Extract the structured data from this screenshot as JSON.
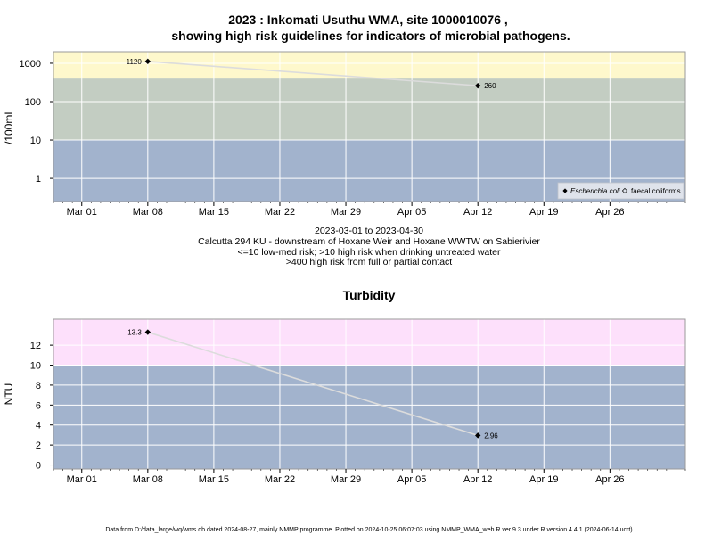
{
  "chart_data": [
    {
      "type": "line",
      "title_line1": "2023 : Inkomati Usuthu WMA, site 1000010076 ,",
      "title_line2": "showing high risk guidelines for indicators of microbial pathogens.",
      "ylabel": "/100mL",
      "y_scale": "log",
      "ylim": [
        0.25,
        2000
      ],
      "y_ticks": [
        1,
        10,
        100,
        1000
      ],
      "y_tick_labels": [
        "1",
        "10",
        "100",
        "1000"
      ],
      "x_range": [
        "2023-02-26",
        "2023-05-04"
      ],
      "x_ticks": [
        "2023-03-01",
        "2023-03-08",
        "2023-03-15",
        "2023-03-22",
        "2023-03-29",
        "2023-04-05",
        "2023-04-12",
        "2023-04-19",
        "2023-04-26"
      ],
      "x_tick_labels": [
        "Mar 01",
        "Mar 08",
        "Mar 15",
        "Mar 22",
        "Mar 29",
        "Apr 05",
        "Apr 12",
        "Apr 19",
        "Apr 26"
      ],
      "bands": [
        {
          "from": 0.25,
          "to": 10,
          "color": "#a2b3cd"
        },
        {
          "from": 10,
          "to": 400,
          "color": "#c3cdc2"
        },
        {
          "from": 400,
          "to": 2000,
          "color": "#fef8cc"
        }
      ],
      "grid": true,
      "series": [
        {
          "name": "Escherichia coli",
          "x": [
            "2023-03-08",
            "2023-04-12"
          ],
          "values": [
            1120,
            260
          ],
          "labels": [
            "1120",
            "260"
          ],
          "marker": "filled-diamond"
        },
        {
          "name": "faecal coliforms",
          "x": [],
          "values": [],
          "labels": [],
          "marker": "open-diamond"
        }
      ],
      "legend_position": "bottom-right",
      "caption": [
        "2023-03-01 to 2023-04-30",
        "Calcutta 294 KU - downstream of Hoxane Weir and Hoxane WWTW on Sabierivier",
        "<=10 low-med risk; >10 high risk when drinking untreated water",
        ">400 high risk from full or partial contact"
      ]
    },
    {
      "type": "line",
      "title": "Turbidity",
      "ylabel": "NTU",
      "y_scale": "linear",
      "ylim": [
        -0.4,
        14.6
      ],
      "y_ticks": [
        0,
        2,
        4,
        6,
        8,
        10,
        12
      ],
      "y_tick_labels": [
        "0",
        "2",
        "4",
        "6",
        "8",
        "10",
        "12"
      ],
      "x_range": [
        "2023-02-26",
        "2023-05-04"
      ],
      "x_ticks": [
        "2023-03-01",
        "2023-03-08",
        "2023-03-15",
        "2023-03-22",
        "2023-03-29",
        "2023-04-05",
        "2023-04-12",
        "2023-04-19",
        "2023-04-26"
      ],
      "x_tick_labels": [
        "Mar 01",
        "Mar 08",
        "Mar 15",
        "Mar 22",
        "Mar 29",
        "Apr 05",
        "Apr 12",
        "Apr 19",
        "Apr 26"
      ],
      "bands": [
        {
          "from": -0.4,
          "to": 10,
          "color": "#a2b3cd"
        },
        {
          "from": 10,
          "to": 14.6,
          "color": "#fde0fb"
        }
      ],
      "grid": true,
      "series": [
        {
          "x": [
            "2023-03-08",
            "2023-04-12"
          ],
          "values": [
            13.3,
            2.96
          ],
          "labels": [
            "13.3",
            "2.96"
          ],
          "marker": "filled-diamond"
        }
      ]
    }
  ],
  "footer": "Data from D:/data_large/wq/wms.db dated 2024-08-27, mainly NMMP programme. Plotted on 2024-10-25 06:07:03 using NMMP_WMA_web.R ver 9.3 under R version 4.4.1 (2024-06-14 ucrt)",
  "colors": {
    "line": "#dcdcdc",
    "grid": "#ffffff",
    "frame": "#9a9a9a",
    "marker": "#000000"
  }
}
